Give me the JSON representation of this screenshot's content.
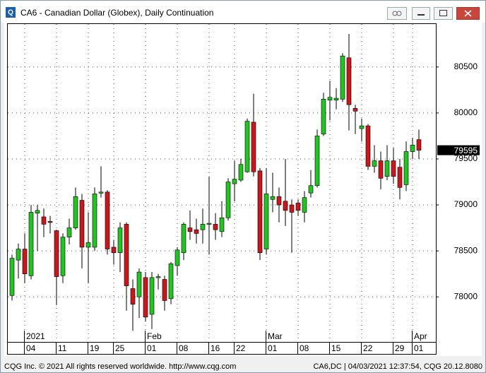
{
  "window": {
    "title": "CA6 - Canadian Dollar (Globex), Daily Continuation"
  },
  "chart_data": {
    "type": "candlestick",
    "categories": [
      null,
      null,
      "04",
      null,
      null,
      null,
      null,
      "11",
      null,
      null,
      null,
      null,
      "19",
      null,
      null,
      null,
      "25",
      null,
      null,
      null,
      null,
      "01",
      null,
      null,
      null,
      null,
      "08",
      null,
      null,
      null,
      null,
      "16",
      null,
      null,
      null,
      "22",
      null,
      null,
      null,
      null,
      "01",
      null,
      null,
      null,
      null,
      "08",
      null,
      null,
      null,
      null,
      "15",
      null,
      null,
      null,
      null,
      "22",
      null,
      null,
      null,
      null,
      "29",
      null,
      null,
      "01",
      null
    ],
    "period_labels": [
      null,
      null,
      "2021",
      null,
      null,
      null,
      null,
      null,
      null,
      null,
      null,
      null,
      null,
      null,
      null,
      null,
      null,
      null,
      null,
      null,
      null,
      "Feb",
      null,
      null,
      null,
      null,
      null,
      null,
      null,
      null,
      null,
      null,
      null,
      null,
      null,
      null,
      null,
      null,
      null,
      null,
      "Mar",
      null,
      null,
      null,
      null,
      null,
      null,
      null,
      null,
      null,
      null,
      null,
      null,
      null,
      null,
      null,
      null,
      null,
      null,
      null,
      null,
      null,
      null,
      "Apr",
      null
    ],
    "open": [
      78015,
      78400,
      78520,
      78230,
      78910,
      78870,
      78820,
      78720,
      78230,
      78650,
      78750,
      79050,
      78540,
      78540,
      79130,
      79140,
      78540,
      78480,
      78790,
      78090,
      78000,
      78210,
      77810,
      78210,
      78190,
      77980,
      78340,
      78480,
      78750,
      78730,
      78730,
      78790,
      78790,
      78710,
      78860,
      79230,
      79270,
      79360,
      79900,
      79370,
      78520,
      79060,
      79090,
      79040,
      79000,
      79020,
      78920,
      79130,
      79210,
      79770,
      80140,
      80140,
      80150,
      80600,
      80050,
      79830,
      79860,
      79420,
      79480,
      79310,
      79480,
      79410,
      79220,
      79580,
      79710
    ],
    "high": [
      78460,
      78580,
      78690,
      79000,
      79000,
      78960,
      78880,
      78730,
      78690,
      78850,
      79190,
      79120,
      78920,
      79190,
      79420,
      79160,
      78620,
      78810,
      78810,
      78190,
      78310,
      78270,
      78270,
      78250,
      78230,
      78380,
      78540,
      78810,
      78940,
      78850,
      78960,
      79310,
      78910,
      79040,
      79290,
      79480,
      79500,
      79940,
      80210,
      79400,
      79400,
      79350,
      79190,
      79500,
      79060,
      79060,
      79150,
      79380,
      79820,
      80220,
      80350,
      80270,
      80650,
      80860,
      80090,
      79940,
      79880,
      79650,
      79580,
      79650,
      79620,
      79500,
      79690,
      79730,
      79820
    ],
    "low": [
      77960,
      78200,
      78150,
      78190,
      78500,
      78650,
      78690,
      77910,
      78150,
      78570,
      78730,
      78310,
      78150,
      78500,
      79080,
      78460,
      78350,
      78270,
      77850,
      77630,
      77770,
      77730,
      77650,
      78080,
      77850,
      77920,
      78230,
      78400,
      78620,
      78580,
      78580,
      78460,
      78620,
      78650,
      78830,
      79040,
      79250,
      79350,
      79310,
      78400,
      78460,
      78920,
      78810,
      78770,
      78480,
      78880,
      78810,
      79080,
      79190,
      79750,
      79920,
      80040,
      80120,
      79810,
      79770,
      79690,
      79380,
      79350,
      79170,
      79270,
      79230,
      79060,
      79150,
      79500,
      79500
    ],
    "close": [
      78420,
      78520,
      78250,
      78920,
      78940,
      78790,
      78810,
      78220,
      78650,
      78750,
      79090,
      78540,
      78590,
      79120,
      79140,
      78520,
      78480,
      78750,
      78120,
      77920,
      78270,
      77780,
      78210,
      78220,
      77960,
      78360,
      78510,
      78790,
      78710,
      78690,
      78790,
      78800,
      78730,
      78860,
      79250,
      79280,
      79440,
      79910,
      79360,
      78480,
      79120,
      79090,
      79000,
      78940,
      78920,
      78940,
      79080,
      79210,
      79750,
      80150,
      80170,
      80160,
      80620,
      80090,
      80020,
      79860,
      79420,
      79480,
      79290,
      79480,
      79310,
      79190,
      79580,
      79650,
      79595
    ],
    "up_color": "#22c322",
    "down_color": "#c8181e",
    "ylim": [
      77510,
      80975
    ],
    "yticks": [
      78000,
      78500,
      79000,
      79500,
      80000,
      80500
    ],
    "last_price": 79595,
    "grid": true
  },
  "footer": {
    "left": "CQG Inc. © 2021 All rights reserved worldwide. http://www.cqg.com",
    "right": "CA6,DC | 04/03/2021 12:37:54, CQG 20.12.8080"
  }
}
